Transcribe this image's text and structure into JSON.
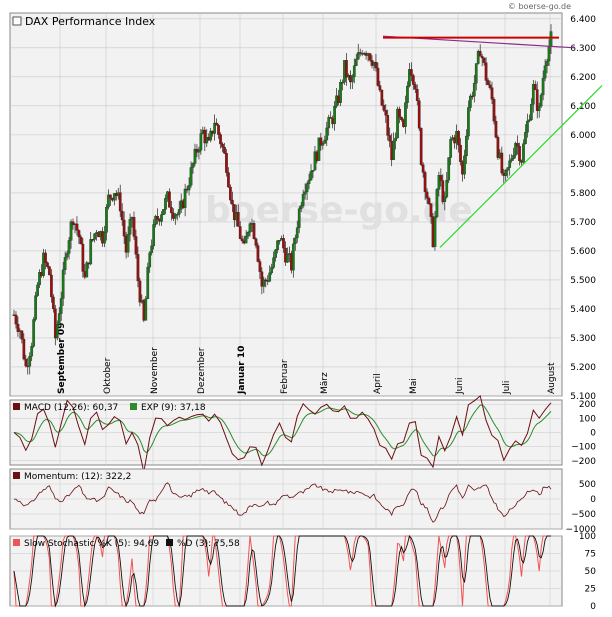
{
  "source_label": "© boerse-go.de",
  "watermark": "boerse-go.de",
  "colors": {
    "panel_bg": "#f2f2f2",
    "grid": "#c8c8c8",
    "axis_text": "#000000",
    "up_candle": "#1a7a1a",
    "down_candle": "#9a1010",
    "resistance": "#cc0000",
    "trend_purple": "#8a2a8a",
    "support": "#33dd33",
    "macd": "#6b1010",
    "signal": "#2e8b2e",
    "momentum": "#6b1010",
    "stoch_k": "#ee5555",
    "stoch_d": "#111111"
  },
  "chart_data": [
    {
      "type": "candlestick",
      "title": "DAX Performance Index",
      "ylim": [
        5100,
        6420
      ],
      "yticks": [
        5100,
        5200,
        5300,
        5400,
        5500,
        5600,
        5700,
        5800,
        5900,
        6000,
        6100,
        6200,
        6300,
        6400
      ],
      "ytick_labels": [
        "5.100",
        "5.200",
        "5.300",
        "5.400",
        "5.500",
        "5.600",
        "5.700",
        "5.800",
        "5.900",
        "6.000",
        "6.100",
        "6.200",
        "6.300",
        "6.400"
      ],
      "x_month_labels": [
        "September 09",
        "Oktober",
        "November",
        "Dezember",
        "Januar 10",
        "Februar",
        "März",
        "April",
        "Mai",
        "Juni",
        "Juli",
        "August"
      ],
      "bold_labels": [
        "September 09",
        "Januar 10"
      ],
      "path_points": [
        [
          0,
          5380
        ],
        [
          6,
          5330
        ],
        [
          12,
          5200
        ],
        [
          18,
          5290
        ],
        [
          24,
          5480
        ],
        [
          30,
          5570
        ],
        [
          36,
          5520
        ],
        [
          42,
          5300
        ],
        [
          48,
          5450
        ],
        [
          54,
          5620
        ],
        [
          60,
          5720
        ],
        [
          66,
          5650
        ],
        [
          72,
          5500
        ],
        [
          78,
          5620
        ],
        [
          84,
          5680
        ],
        [
          90,
          5650
        ],
        [
          96,
          5780
        ],
        [
          102,
          5810
        ],
        [
          108,
          5760
        ],
        [
          114,
          5600
        ],
        [
          120,
          5720
        ],
        [
          126,
          5500
        ],
        [
          132,
          5350
        ],
        [
          138,
          5600
        ],
        [
          144,
          5700
        ],
        [
          150,
          5740
        ],
        [
          156,
          5780
        ],
        [
          162,
          5740
        ],
        [
          168,
          5720
        ],
        [
          174,
          5800
        ],
        [
          180,
          5870
        ],
        [
          186,
          5950
        ],
        [
          192,
          6010
        ],
        [
          198,
          5960
        ],
        [
          204,
          6050
        ],
        [
          210,
          5980
        ],
        [
          216,
          5900
        ],
        [
          222,
          5750
        ],
        [
          228,
          5680
        ],
        [
          234,
          5600
        ],
        [
          240,
          5720
        ],
        [
          246,
          5640
        ],
        [
          252,
          5480
        ],
        [
          258,
          5510
        ],
        [
          264,
          5560
        ],
        [
          270,
          5650
        ],
        [
          276,
          5590
        ],
        [
          282,
          5550
        ],
        [
          288,
          5700
        ],
        [
          294,
          5820
        ],
        [
          300,
          5860
        ],
        [
          306,
          5920
        ],
        [
          312,
          5980
        ],
        [
          318,
          6020
        ],
        [
          324,
          6060
        ],
        [
          330,
          6130
        ],
        [
          336,
          6230
        ],
        [
          342,
          6170
        ],
        [
          348,
          6250
        ],
        [
          354,
          6300
        ],
        [
          360,
          6290
        ],
        [
          366,
          6250
        ],
        [
          372,
          6130
        ],
        [
          378,
          6050
        ],
        [
          384,
          5920
        ],
        [
          390,
          6060
        ],
        [
          396,
          6010
        ],
        [
          402,
          6250
        ],
        [
          408,
          6180
        ],
        [
          414,
          5920
        ],
        [
          420,
          5790
        ],
        [
          426,
          5640
        ],
        [
          432,
          5860
        ],
        [
          438,
          5760
        ],
        [
          444,
          5980
        ],
        [
          450,
          6000
        ],
        [
          456,
          5860
        ],
        [
          462,
          6100
        ],
        [
          468,
          6180
        ],
        [
          474,
          6300
        ],
        [
          480,
          6200
        ],
        [
          486,
          6120
        ],
        [
          492,
          5950
        ],
        [
          498,
          5830
        ],
        [
          504,
          5900
        ],
        [
          510,
          5980
        ],
        [
          516,
          5920
        ],
        [
          522,
          6040
        ],
        [
          528,
          6160
        ],
        [
          534,
          6080
        ],
        [
          540,
          6260
        ],
        [
          546,
          6330
        ]
      ],
      "resistance_line": {
        "from": [
          363,
          6335
        ],
        "to": [
          551,
          6335
        ]
      },
      "trend_line_purple": {
        "from": [
          363,
          6340
        ],
        "to": [
          575,
          6300
        ]
      },
      "support_line": {
        "from": [
          418,
          5612
        ],
        "to": [
          602,
          6170
        ]
      }
    },
    {
      "type": "line",
      "title": "MACD (12,26): 60,37",
      "series": [
        {
          "name": "MACD (12,26): 60,37"
        },
        {
          "name": "EXP (9): 37,18"
        }
      ],
      "ylim": [
        -230,
        230
      ],
      "yticks": [
        -200,
        -100,
        0,
        100,
        200
      ],
      "ytick_labels": [
        "−200",
        "−100",
        "0",
        "100",
        "200"
      ],
      "current": {
        "macd": 60.37,
        "exp": 37.18
      }
    },
    {
      "type": "line",
      "title": "Momentum: (12): 322,2",
      "series": [
        {
          "name": "Momentum: (12): 322,2"
        }
      ],
      "ylim": [
        -1000,
        1000
      ],
      "yticks": [
        -1000,
        -500,
        0,
        500
      ],
      "ytick_labels": [
        "−1000",
        "−500",
        "0",
        "500"
      ],
      "current": 322.2
    },
    {
      "type": "line",
      "title": "Slow Stochastic %K (5): 94,69",
      "series": [
        {
          "name": "Slow Stochastic %K (5): 94,69"
        },
        {
          "name": "%D (3): 75,58"
        }
      ],
      "ylim": [
        0,
        100
      ],
      "yticks": [
        0,
        25,
        50,
        75,
        100
      ],
      "ytick_labels": [
        "0",
        "25",
        "50",
        "75",
        "100"
      ],
      "current": {
        "k": 94.69,
        "d": 75.58
      }
    }
  ],
  "legends": {
    "main": "DAX Performance Index",
    "macd": "MACD (12,26): 60,37",
    "exp": "EXP (9): 37,18",
    "momentum": "Momentum: (12): 322,2",
    "stoch_k": "Slow Stochastic %K (5): 94,69",
    "stoch_d": "%D (3): 75,58"
  }
}
